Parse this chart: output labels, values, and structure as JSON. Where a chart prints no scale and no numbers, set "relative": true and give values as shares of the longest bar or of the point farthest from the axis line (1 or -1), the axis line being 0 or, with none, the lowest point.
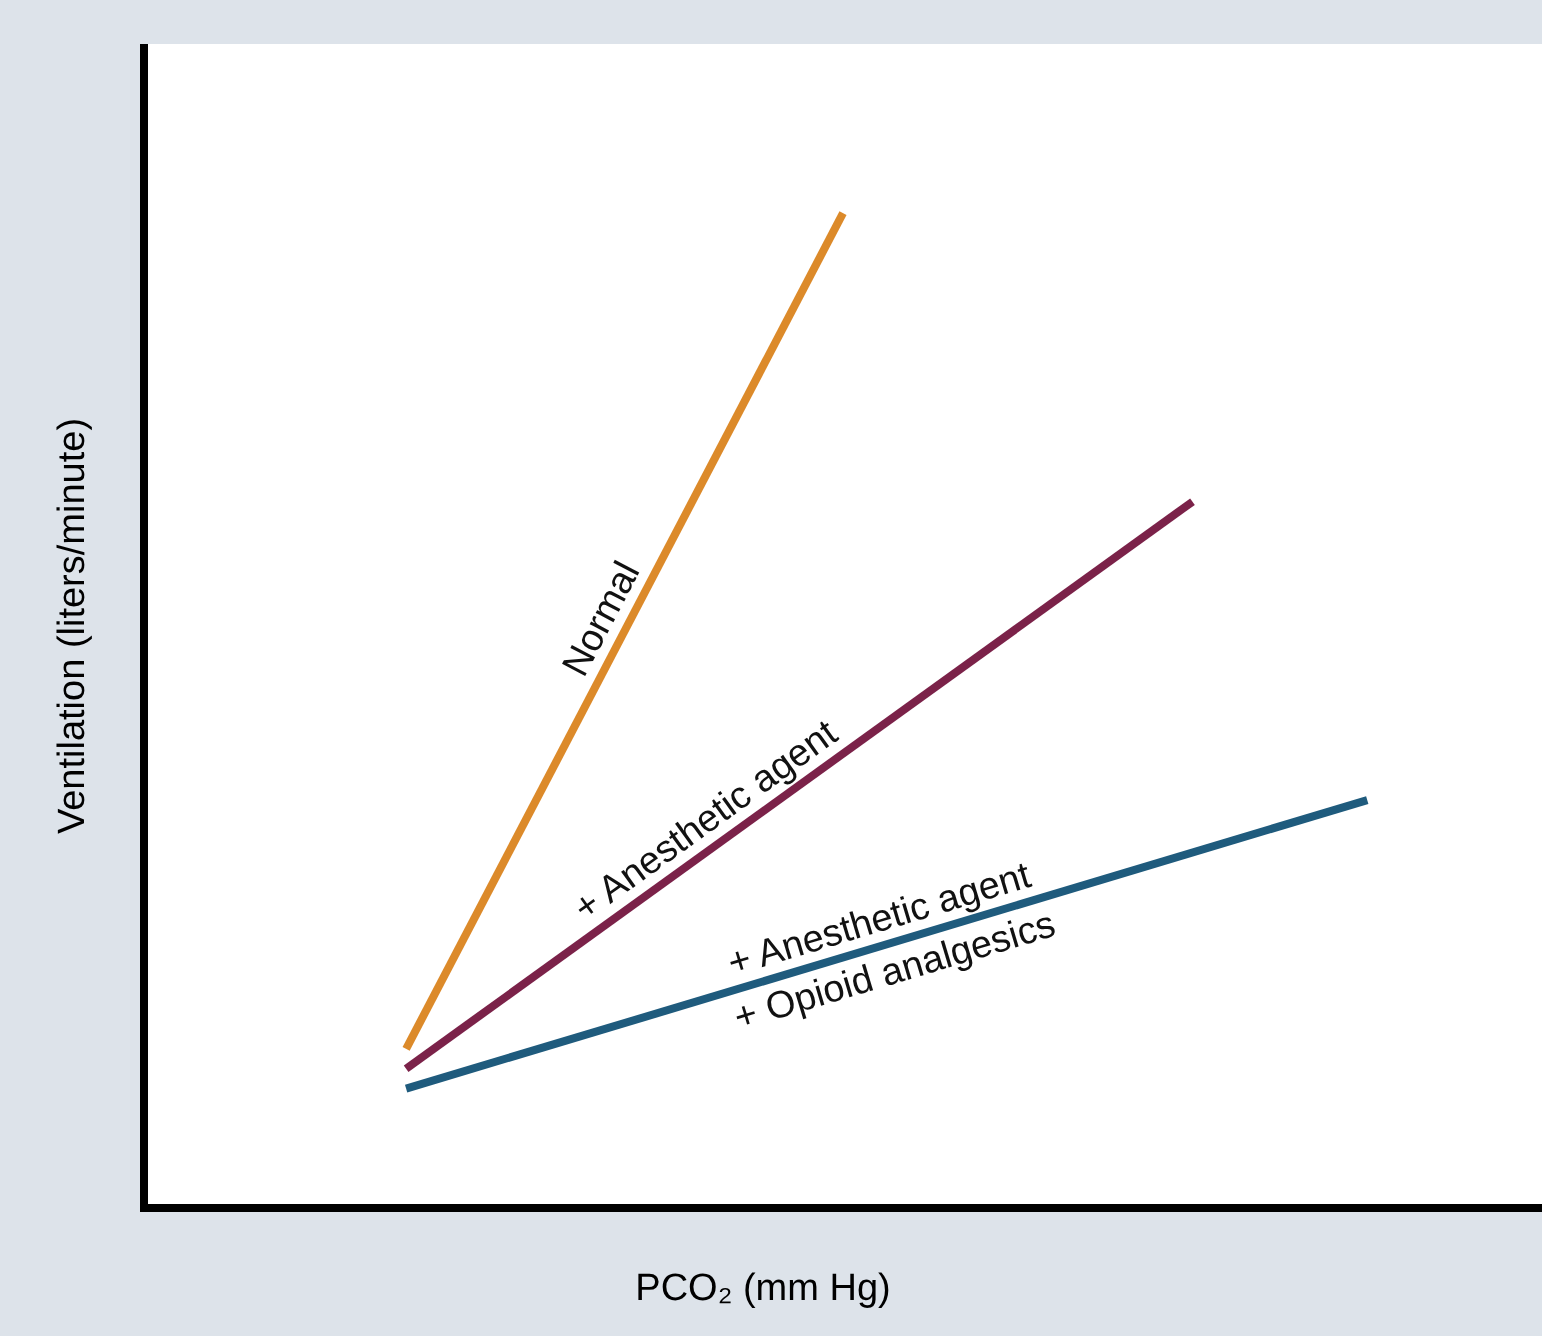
{
  "chart_data": {
    "type": "line",
    "relative": true,
    "xlabel": "PCO₂ (mm Hg)",
    "ylabel": "Ventilation (liters/minute)",
    "categories": [
      null,
      null,
      null,
      null,
      null,
      null,
      null,
      null,
      null,
      null,
      null,
      null,
      null,
      null,
      null,
      null,
      null
    ],
    "series": [
      {
        "name": "Normal",
        "color": "#dc8a2a",
        "values": [
          null,
          null,
          null,
          0.16,
          null,
          null,
          null,
          null,
          1,
          null,
          null,
          null,
          null,
          null,
          null,
          null,
          null
        ]
      },
      {
        "name": "+ Anesthetic agent",
        "color": "#7b2249",
        "values": [
          null,
          null,
          null,
          0.14,
          null,
          null,
          null,
          null,
          null,
          null,
          null,
          null,
          0.71,
          null,
          null,
          null,
          null
        ]
      },
      {
        "name": "+ Anesthetic agent\n+ Opioid analgesics",
        "color": "#1f5b7d",
        "values": [
          null,
          null,
          null,
          0.12,
          null,
          null,
          null,
          null,
          null,
          null,
          null,
          null,
          null,
          null,
          0.41,
          null,
          null
        ]
      }
    ]
  }
}
